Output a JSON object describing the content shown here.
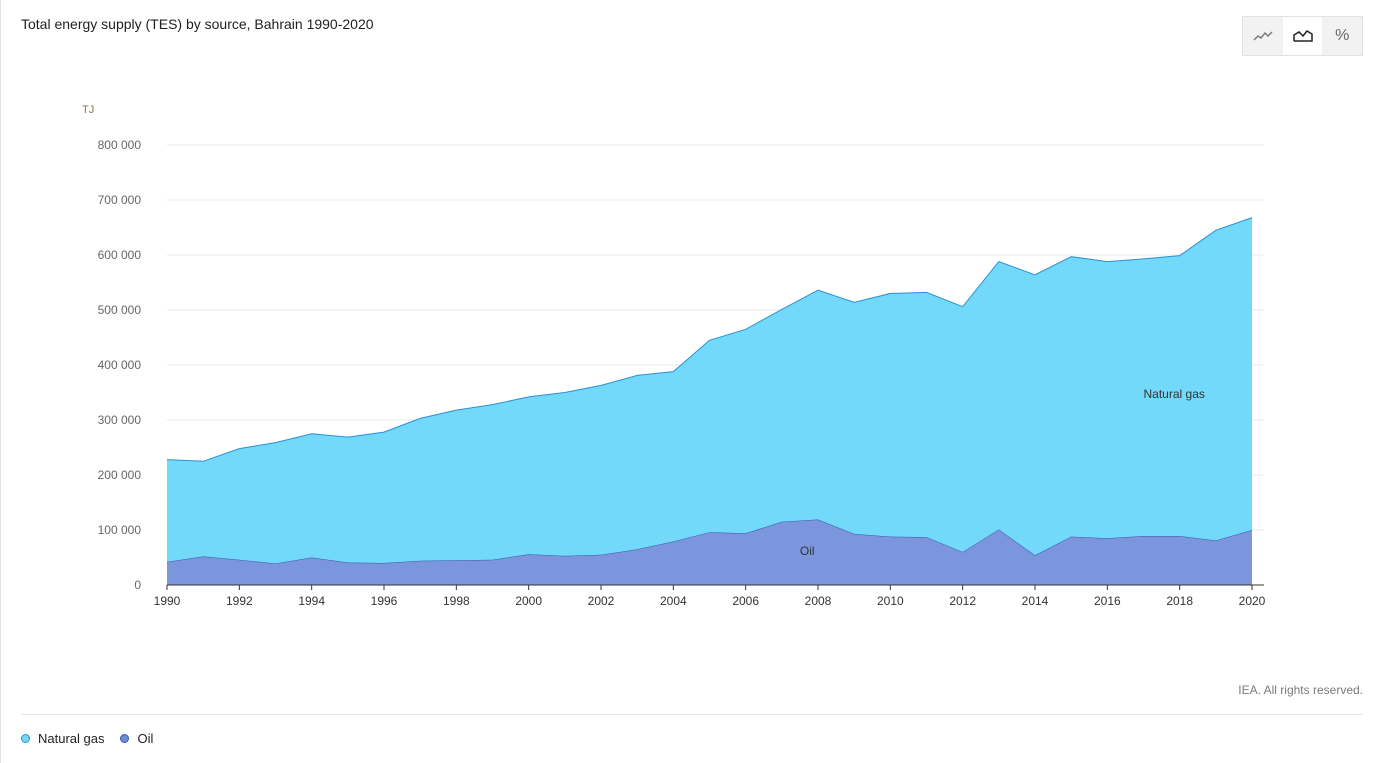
{
  "title": "Total energy supply (TES) by source, Bahrain 1990-2020",
  "toolbar": {
    "buttons": [
      {
        "icon": "line-chart-icon",
        "active": false
      },
      {
        "icon": "area-chart-icon",
        "active": true
      },
      {
        "icon": "percent-icon",
        "glyph": "%",
        "active": false
      }
    ]
  },
  "credit": "IEA. All rights reserved.",
  "legend": [
    {
      "label": "Natural gas",
      "color": "#73d9fa",
      "border": "#2b8fd6"
    },
    {
      "label": "Oil",
      "color": "#6c8ad9",
      "border": "#3d55a8"
    }
  ],
  "chart_data": {
    "type": "area",
    "stacked": true,
    "ylabel": "TJ",
    "ylim": [
      0,
      800000
    ],
    "yticks": [
      0,
      100000,
      200000,
      300000,
      400000,
      500000,
      600000,
      700000,
      800000
    ],
    "ytick_labels": [
      "0",
      "100 000",
      "200 000",
      "300 000",
      "400 000",
      "500 000",
      "600 000",
      "700 000",
      "800 000"
    ],
    "xlim": [
      1990,
      2020
    ],
    "xticks": [
      1990,
      1992,
      1994,
      1996,
      1998,
      2000,
      2002,
      2004,
      2006,
      2008,
      2010,
      2012,
      2014,
      2016,
      2018,
      2020
    ],
    "grid": true,
    "x": [
      1990,
      1991,
      1992,
      1993,
      1994,
      1995,
      1996,
      1997,
      1998,
      1999,
      2000,
      2001,
      2002,
      2003,
      2004,
      2005,
      2006,
      2007,
      2008,
      2009,
      2010,
      2011,
      2012,
      2013,
      2014,
      2015,
      2016,
      2017,
      2018,
      2019,
      2020
    ],
    "series": [
      {
        "name": "Oil",
        "color": "#7b96dd",
        "line": "#3d55a8",
        "values": [
          42000,
          52000,
          46000,
          39000,
          50000,
          41000,
          40000,
          44000,
          45000,
          46000,
          56000,
          53000,
          55000,
          65000,
          79000,
          96000,
          94000,
          115000,
          119000,
          93000,
          88000,
          87000,
          60000,
          101000,
          54000,
          88000,
          85000,
          89000,
          89000,
          81000,
          100000
        ]
      },
      {
        "name": "Natural gas",
        "color": "#73d9fa",
        "line": "#2b8fd6",
        "values": [
          186000,
          173000,
          202000,
          220000,
          225000,
          228000,
          238000,
          259000,
          273000,
          282000,
          286000,
          297000,
          308000,
          316000,
          309000,
          349000,
          371000,
          386000,
          417000,
          421000,
          442000,
          445000,
          446000,
          487000,
          510000,
          509000,
          503000,
          504000,
          510000,
          564000,
          568000
        ]
      }
    ],
    "annotations": [
      {
        "text": "Natural gas",
        "x": 2017,
        "y": 340000
      },
      {
        "text": "Oil",
        "x": 2007.5,
        "y": 55000
      }
    ]
  }
}
